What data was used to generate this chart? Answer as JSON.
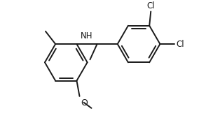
{
  "background": "#ffffff",
  "line_color": "#1a1a1a",
  "line_width": 1.4,
  "font_size": 8.5,
  "fig_width": 3.14,
  "fig_height": 1.79,
  "dpi": 100,
  "xlim": [
    0.0,
    6.2
  ],
  "ylim": [
    -0.5,
    3.7
  ]
}
